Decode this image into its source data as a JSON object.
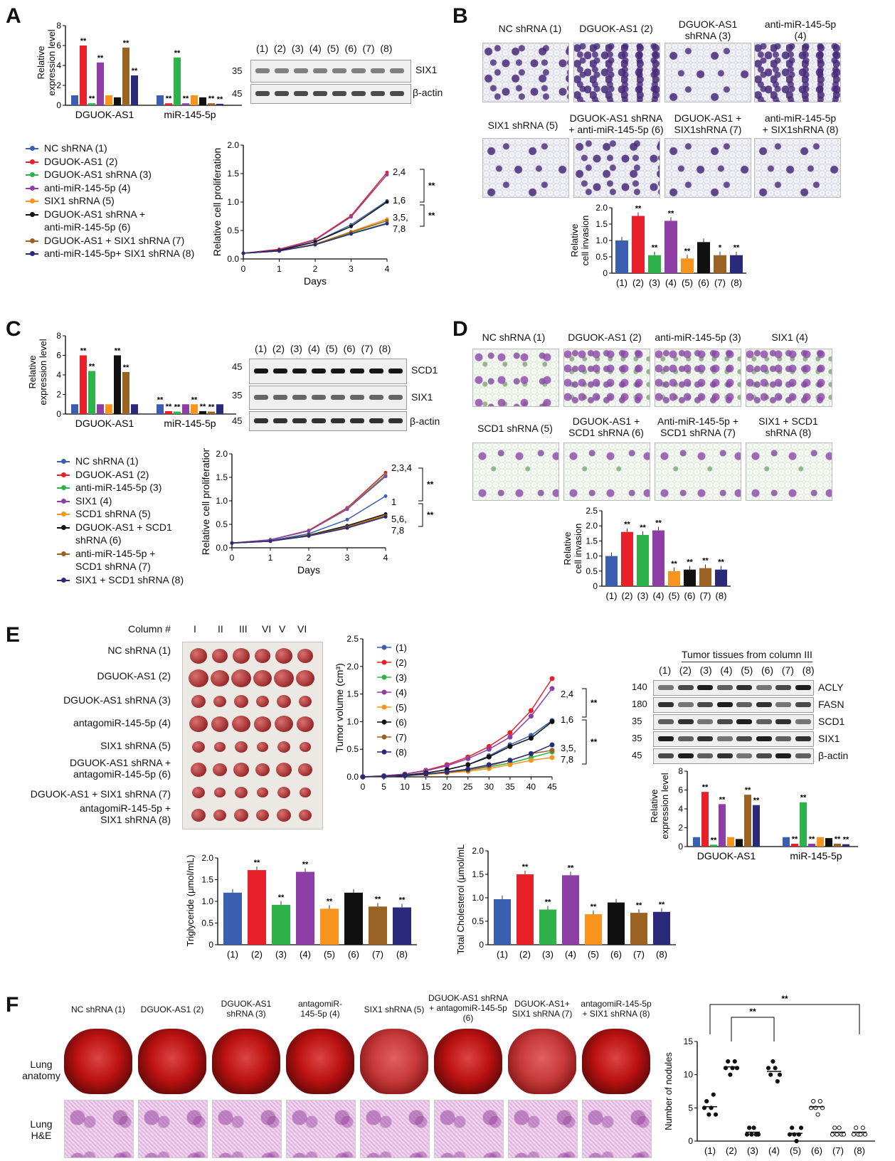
{
  "panel_labels": [
    "A",
    "B",
    "C",
    "D",
    "E",
    "F"
  ],
  "colors": {
    "g1": "#3a5fb0",
    "g2": "#e8202a",
    "g3": "#2eb34a",
    "g4": "#8e3fa6",
    "g5": "#f7941d",
    "g6": "#111111",
    "g7": "#9a6324",
    "g8": "#2b2a7a"
  },
  "A": {
    "bar_ylabel": "Relative expression level",
    "bar_groups": [
      "DGUOK-AS1",
      "miR-145-5p"
    ],
    "blot_lanes": [
      "(1)",
      "(2)",
      "(3)",
      "(4)",
      "(5)",
      "(6)",
      "(7)",
      "(8)"
    ],
    "blot_rows": [
      {
        "mw": "35",
        "label": "SIX1"
      },
      {
        "mw": "45",
        "label": "β-actin"
      }
    ],
    "legend": [
      "NC shRNA (1)",
      "DGUOK-AS1 (2)",
      "DGUOK-AS1 shRNA (3)",
      "anti-miR-145-5p (4)",
      "SIX1 shRNA (5)",
      "DGUOK-AS1 shRNA +",
      "anti-miR-145-5p (6)",
      "DGUOK-AS1 + SIX1 shRNA (7)",
      "anti-miR-145-5p+ SIX1 shRNA (8)"
    ],
    "curve_labels": [
      "2,4",
      "1,6",
      "3,5,",
      "7,8"
    ],
    "sig": "**"
  },
  "B": {
    "top_labels": [
      "NC shRNA (1)",
      "DGUOK-AS1 (2)",
      "DGUOK-AS1",
      "shRNA (3)",
      "anti-miR-145-5p",
      "(4)"
    ],
    "bottom_labels": [
      "SIX1 shRNA (5)",
      "DGUOK-AS1 shRNA",
      "+ anti-miR-145-5p (6)",
      "DGUOK-AS1 +",
      "SIX1shRNA (7)",
      "anti-miR-145-5p",
      "+ SIX1shRNA (8)"
    ],
    "ylabel1": "Relative",
    "ylabel2": "cell invasion"
  },
  "C": {
    "blot_rows": [
      {
        "mw": "45",
        "label": "SCD1"
      },
      {
        "mw": "35",
        "label": "SIX1"
      },
      {
        "mw": "45",
        "label": "β-actin"
      }
    ],
    "legend": [
      "NC shRNA (1)",
      "DGUOK-AS1 (2)",
      "anti-miR-145-5p (3)",
      "SIX1 (4)",
      "SCD1 shRNA (5)",
      "DGUOK-AS1 +  SCD1",
      "shRNA (6)",
      "anti-miR-145-5p +",
      "SCD1 shRNA (7)",
      "SIX1 + SCD1 shRNA (8)"
    ],
    "curve_labels": [
      "2,3,4",
      "1",
      "5,6,",
      "7,8"
    ]
  },
  "D": {
    "top_labels": [
      "NC shRNA (1)",
      "DGUOK-AS1 (2)",
      "anti-miR-145-5p (3)",
      "SIX1 (4)"
    ],
    "bottom_labels": [
      "SCD1 shRNA (5)",
      "DGUOK-AS1 +",
      "SCD1 shRNA (6)",
      "Anti-miR-145-5p +",
      "SCD1 shRNA (7)",
      "SIX1 + SCD1",
      "shRNA  (8)"
    ]
  },
  "E": {
    "column_title": "Column #",
    "columns": [
      "I",
      "II",
      "III",
      "VI",
      "V",
      "VI"
    ],
    "rows": [
      "NC shRNA (1)",
      "DGUOK-AS1 (2)",
      "DGUOK-AS1 shRNA (3)",
      "antagomiR-145-5p (4)",
      "SIX1 shRNA (5)",
      "DGUOK-AS1 shRNA +",
      "antagomiR-145-5p (6)",
      "DGUOK-AS1 + SIX1 shRNA (7)",
      "antagomiR-145-5p +",
      "SIX1 shRNA (8)"
    ],
    "tumor_ylabel": "Tumor volume (cm³)",
    "tumor_legend": [
      "(1)",
      "(2)",
      "(3)",
      "(4)",
      "(5)",
      "(6)",
      "(7)",
      "(8)"
    ],
    "tumor_curve_labels": [
      "2,4",
      "1,6",
      "3,5,",
      "7,8"
    ],
    "blot_title": "Tumor tissues from column III",
    "blot_rows": [
      {
        "mw": "140",
        "label": "ACLY"
      },
      {
        "mw": "180",
        "label": "FASN"
      },
      {
        "mw": "35",
        "label": "SCD1"
      },
      {
        "mw": "35",
        "label": "SIX1"
      },
      {
        "mw": "45",
        "label": "β-actin"
      }
    ],
    "tg_ylabel": "Triglyceride (μmol/mL)",
    "tc_ylabel": "Total Cholesterol (μmol/mL)"
  },
  "F": {
    "groups": [
      "NC shRNA (1)",
      "DGUOK-AS1 (2)",
      "DGUOK-AS1\nshRNA (3)",
      "antagomiR-\n145-5p (4)",
      "SIX1 shRNA (5)",
      "DGUOK-AS1 shRNA\n+ antagomiR-145-5p\n(6)",
      "DGUOK-AS1+\nSIX1 shRNA (7)",
      "antagomiR-145-5p\n+ SIX1 shRNA (8)"
    ],
    "row1": [
      "Lung",
      "anatomy"
    ],
    "row2": [
      "Lung",
      "H&E"
    ],
    "nodule_ylabel": "Number of nodules"
  },
  "chart_data": [
    {
      "id": "A-bar",
      "type": "bar",
      "ylabel": "Relative expression level",
      "ylim": [
        0,
        8
      ],
      "yticks": [
        0,
        2,
        4,
        6,
        8
      ],
      "categories": [
        "DGUOK-AS1",
        "miR-145-5p"
      ],
      "series_values": [
        [
          1,
          6,
          0.2,
          4.3,
          1,
          0.8,
          5.8,
          3
        ],
        [
          1,
          0.2,
          4.8,
          0.2,
          1,
          0.8,
          0.2,
          0.15
        ]
      ],
      "sig": [
        [
          "",
          "**",
          "**",
          "**",
          "",
          "",
          "**",
          "**"
        ],
        [
          "",
          "**",
          "**",
          "**",
          "",
          "",
          "**",
          "**"
        ]
      ]
    },
    {
      "id": "A-line",
      "type": "line",
      "xlabel": "Days",
      "ylabel": "Relative cell proliferation",
      "x": [
        0,
        1,
        2,
        3,
        4
      ],
      "ylim": [
        0,
        2
      ],
      "yticks": [
        0,
        0.5,
        1.0,
        1.5,
        2.0
      ],
      "series": [
        [
          0.1,
          0.15,
          0.3,
          0.6,
          1.02
        ],
        [
          0.1,
          0.17,
          0.34,
          0.76,
          1.52
        ],
        [
          0.1,
          0.14,
          0.25,
          0.45,
          0.63
        ],
        [
          0.1,
          0.16,
          0.33,
          0.74,
          1.48
        ],
        [
          0.1,
          0.14,
          0.26,
          0.48,
          0.7
        ],
        [
          0.1,
          0.15,
          0.3,
          0.57,
          1.0
        ],
        [
          0.1,
          0.14,
          0.26,
          0.47,
          0.67
        ],
        [
          0.1,
          0.14,
          0.25,
          0.44,
          0.62
        ]
      ]
    },
    {
      "id": "B-bar",
      "type": "bar",
      "ylabel": "Relative cell invasion",
      "ylim": [
        0,
        2
      ],
      "yticks": [
        0,
        0.5,
        1.0,
        1.5,
        2.0
      ],
      "categories": [
        "(1)",
        "(2)",
        "(3)",
        "(4)",
        "(5)",
        "(6)",
        "(7)",
        "(8)"
      ],
      "values": [
        1.0,
        1.75,
        0.55,
        1.6,
        0.45,
        0.95,
        0.55,
        0.55
      ],
      "sig": [
        "",
        "**",
        "**",
        "**",
        "**",
        "",
        "*",
        "**"
      ]
    },
    {
      "id": "C-bar",
      "type": "bar",
      "ylabel": "Relative expression level",
      "ylim": [
        0,
        8
      ],
      "yticks": [
        0,
        2,
        4,
        6,
        8
      ],
      "categories": [
        "DGUOK-AS1",
        "miR-145-5p"
      ],
      "series_values": [
        [
          1,
          6,
          4.4,
          1,
          1,
          6,
          4.3,
          1
        ],
        [
          1,
          0.3,
          0.25,
          1,
          1,
          0.3,
          0.25,
          1
        ]
      ],
      "sig": [
        [
          "",
          "**",
          "**",
          "",
          "",
          "**",
          "**",
          ""
        ],
        [
          "**",
          "**",
          "**",
          "",
          "**",
          "**",
          "**",
          ""
        ]
      ]
    },
    {
      "id": "C-line",
      "type": "line",
      "xlabel": "Days",
      "ylabel": "Relative cell proliferation",
      "x": [
        0,
        1,
        2,
        3,
        4
      ],
      "ylim": [
        0,
        2
      ],
      "yticks": [
        0,
        0.5,
        1.0,
        1.5,
        2.0
      ],
      "series": [
        [
          0.1,
          0.15,
          0.3,
          0.6,
          1.1
        ],
        [
          0.1,
          0.17,
          0.37,
          0.85,
          1.6
        ],
        [
          0.1,
          0.17,
          0.36,
          0.83,
          1.55
        ],
        [
          0.1,
          0.17,
          0.36,
          0.82,
          1.52
        ],
        [
          0.1,
          0.14,
          0.26,
          0.45,
          0.7
        ],
        [
          0.1,
          0.14,
          0.27,
          0.47,
          0.72
        ],
        [
          0.1,
          0.14,
          0.26,
          0.44,
          0.68
        ],
        [
          0.1,
          0.14,
          0.25,
          0.42,
          0.66
        ]
      ]
    },
    {
      "id": "D-bar",
      "type": "bar",
      "ylabel": "Relative cell invasion",
      "ylim": [
        0,
        2.5
      ],
      "yticks": [
        0,
        0.5,
        1.0,
        1.5,
        2.0,
        2.5
      ],
      "categories": [
        "(1)",
        "(2)",
        "(3)",
        "(4)",
        "(5)",
        "(6)",
        "(7)",
        "(8)"
      ],
      "values": [
        1.0,
        1.8,
        1.7,
        1.85,
        0.5,
        0.55,
        0.6,
        0.55
      ],
      "sig": [
        "",
        "**",
        "**",
        "**",
        "**",
        "**",
        "**",
        "**"
      ]
    },
    {
      "id": "E-line",
      "type": "line",
      "ylabel": "Tumor volume (cm³)",
      "x": [
        0,
        5,
        10,
        15,
        20,
        25,
        30,
        35,
        40,
        45
      ],
      "ylim": [
        0,
        2.5
      ],
      "yticks": [
        0,
        0.5,
        1.0,
        1.5,
        2.0,
        2.5
      ],
      "series": [
        [
          0,
          0.01,
          0.03,
          0.07,
          0.13,
          0.22,
          0.38,
          0.58,
          0.75,
          1.02
        ],
        [
          0,
          0.02,
          0.05,
          0.12,
          0.22,
          0.36,
          0.55,
          0.8,
          1.2,
          1.78
        ],
        [
          0,
          0.01,
          0.02,
          0.05,
          0.08,
          0.12,
          0.18,
          0.25,
          0.35,
          0.45
        ],
        [
          0,
          0.02,
          0.05,
          0.11,
          0.2,
          0.33,
          0.5,
          0.72,
          1.1,
          1.6
        ],
        [
          0,
          0.01,
          0.02,
          0.04,
          0.07,
          0.1,
          0.15,
          0.22,
          0.3,
          0.35
        ],
        [
          0,
          0.01,
          0.03,
          0.07,
          0.13,
          0.22,
          0.36,
          0.55,
          0.7,
          1.0
        ],
        [
          0,
          0.01,
          0.02,
          0.05,
          0.08,
          0.12,
          0.2,
          0.3,
          0.42,
          0.48
        ],
        [
          0,
          0.01,
          0.02,
          0.05,
          0.09,
          0.14,
          0.22,
          0.3,
          0.42,
          0.58
        ]
      ]
    },
    {
      "id": "E-bar",
      "type": "bar",
      "ylabel": "Relative expression level",
      "ylim": [
        0,
        8
      ],
      "yticks": [
        0,
        2,
        4,
        6,
        8
      ],
      "categories": [
        "DGUOK-AS1",
        "miR-145-5p"
      ],
      "series_values": [
        [
          1,
          5.8,
          0.2,
          4.5,
          1,
          0.8,
          5.5,
          4.4
        ],
        [
          1,
          0.3,
          4.7,
          0.3,
          1,
          0.9,
          0.3,
          0.25
        ]
      ],
      "sig": [
        [
          "",
          "**",
          "**",
          "**",
          "",
          "",
          "**",
          "**"
        ],
        [
          "",
          "**",
          "**",
          "**",
          "",
          "",
          "**",
          "**"
        ]
      ]
    },
    {
      "id": "E-tg",
      "type": "bar",
      "ylabel": "Triglyceride (μmol/mL)",
      "ylim": [
        0,
        2
      ],
      "yticks": [
        0,
        0.5,
        1.0,
        1.5,
        2.0
      ],
      "categories": [
        "(1)",
        "(2)",
        "(3)",
        "(4)",
        "(5)",
        "(6)",
        "(7)",
        "(8)"
      ],
      "values": [
        1.2,
        1.72,
        0.92,
        1.68,
        0.83,
        1.2,
        0.88,
        0.86
      ],
      "sig": [
        "",
        "**",
        "**",
        "**",
        "**",
        "",
        "**",
        "**"
      ]
    },
    {
      "id": "E-tc",
      "type": "bar",
      "ylabel": "Total Cholesterol (μmol/mL)",
      "ylim": [
        0,
        2
      ],
      "yticks": [
        0,
        0.5,
        1.0,
        1.5,
        2.0
      ],
      "categories": [
        "(1)",
        "(2)",
        "(3)",
        "(4)",
        "(5)",
        "(6)",
        "(7)",
        "(8)"
      ],
      "values": [
        0.97,
        1.5,
        0.75,
        1.48,
        0.65,
        0.9,
        0.68,
        0.7
      ],
      "sig": [
        "",
        "**",
        "**",
        "**",
        "**",
        "",
        "**",
        "**"
      ]
    },
    {
      "id": "F-scatter",
      "type": "scatter",
      "ylabel": "Number of nodules",
      "ylim": [
        0,
        15
      ],
      "yticks": [
        0,
        5,
        10,
        15
      ],
      "categories": [
        "(1)",
        "(2)",
        "(3)",
        "(4)",
        "(5)",
        "(6)",
        "(7)",
        "(8)"
      ],
      "values": [
        [
          5,
          6,
          4,
          5,
          7,
          4
        ],
        [
          11,
          12,
          10,
          11,
          12,
          11
        ],
        [
          1,
          2,
          1,
          2,
          1,
          1
        ],
        [
          11,
          10,
          12,
          11,
          9,
          10
        ],
        [
          1,
          2,
          1,
          0,
          1,
          2
        ],
        [
          5,
          6,
          5,
          4,
          6,
          5
        ],
        [
          1,
          2,
          1,
          2,
          1,
          1
        ],
        [
          1,
          2,
          1,
          1,
          2,
          1
        ]
      ]
    }
  ]
}
